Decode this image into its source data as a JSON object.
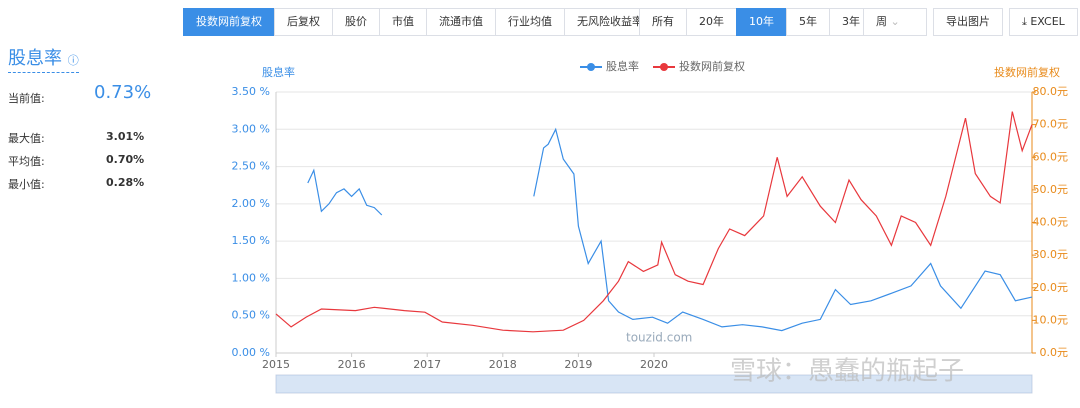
{
  "toolbar": {
    "price_modes": [
      "投数网前复权",
      "后复权",
      "股价",
      "市值",
      "流通市值",
      "行业均值",
      "无风险收益率"
    ],
    "active_mode": 0,
    "ranges": [
      "所有",
      "20年",
      "10年",
      "5年",
      "3年"
    ],
    "active_range": 2,
    "period": "周",
    "export_image": "导出图片",
    "export_excel": "EXCEL"
  },
  "sidebar": {
    "title": "股息率",
    "stats": [
      {
        "label": "当前值:",
        "value": "0.73%"
      },
      {
        "label": "最大值:",
        "value": "3.01%"
      },
      {
        "label": "平均值:",
        "value": "0.70%"
      },
      {
        "label": "最小值:",
        "value": "0.28%"
      }
    ]
  },
  "watermarks": [
    "touzid.com",
    "雪球：愚蠢的瓶起子"
  ],
  "chart_data": {
    "type": "line",
    "y_label": "股息率",
    "y2_label": "投数网前复权",
    "xlim": [
      2015,
      2025
    ],
    "xticks": [
      2015,
      2016,
      2017,
      2018,
      2019,
      2020
    ],
    "ylim": [
      0,
      3.5
    ],
    "yticks": [
      {
        "value": 0,
        "label": "0.00 %"
      },
      {
        "value": 0.5,
        "label": "0.50 %"
      },
      {
        "value": 1,
        "label": "1.00 %"
      },
      {
        "value": 1.5,
        "label": "1.50 %"
      },
      {
        "value": 2,
        "label": "2.00 %"
      },
      {
        "value": 2.5,
        "label": "2.50 %"
      },
      {
        "value": 3,
        "label": "3.00 %"
      },
      {
        "value": 3.5,
        "label": "3.50 %"
      }
    ],
    "y2lim": [
      0,
      80
    ],
    "y2ticks": [
      {
        "value": 0,
        "label": "0.0元"
      },
      {
        "value": 10,
        "label": "10.0元"
      },
      {
        "value": 20,
        "label": "20.0元"
      },
      {
        "value": 30,
        "label": "30.0元"
      },
      {
        "value": 40,
        "label": "40.0元"
      },
      {
        "value": 50,
        "label": "50.0元"
      },
      {
        "value": 60,
        "label": "60.0元"
      },
      {
        "value": 70,
        "label": "70.0元"
      },
      {
        "value": 80,
        "label": "80.0元"
      }
    ],
    "grid": true,
    "series": [
      {
        "name": "股息率",
        "color": "#3a8ee6",
        "axis": "y",
        "x": [
          2015.42,
          2015.5,
          2015.6,
          2015.7,
          2015.8,
          2015.9,
          2016.0,
          2016.1,
          2016.2,
          2016.3,
          2016.4,
          2017.4,
          2018.41,
          2018.54,
          2018.6,
          2018.7,
          2018.8,
          2018.94,
          2019.0,
          2019.13,
          2019.3,
          2019.4,
          2019.53,
          2019.72,
          2019.98,
          2020.18,
          2020.38,
          2020.65,
          2020.9,
          2021.17,
          2021.43,
          2021.69,
          2021.96,
          2022.2,
          2022.4,
          2022.6,
          2022.87,
          2023.14,
          2023.4,
          2023.66,
          2023.79,
          2024.06,
          2024.38,
          2024.58,
          2024.78,
          2025.0
        ],
        "values": [
          2.28,
          2.45,
          1.9,
          2.0,
          2.15,
          2.2,
          2.1,
          2.2,
          1.98,
          1.95,
          1.85,
          null,
          2.1,
          2.75,
          2.8,
          3.0,
          2.6,
          2.4,
          1.7,
          1.2,
          1.5,
          0.7,
          0.55,
          0.45,
          0.48,
          0.4,
          0.55,
          0.45,
          0.35,
          0.38,
          0.35,
          0.3,
          0.4,
          0.45,
          0.85,
          0.65,
          0.7,
          0.8,
          0.9,
          1.2,
          0.9,
          0.6,
          1.1,
          1.05,
          0.7,
          0.75
        ]
      },
      {
        "name": "投数网前复权",
        "color": "#e8383d",
        "axis": "y2",
        "x": [
          2015.0,
          2015.2,
          2015.4,
          2015.6,
          2016.05,
          2016.3,
          2016.7,
          2016.97,
          2017.2,
          2017.6,
          2018.0,
          2018.4,
          2018.8,
          2019.07,
          2019.33,
          2019.53,
          2019.66,
          2019.86,
          2020.05,
          2020.1,
          2020.28,
          2020.45,
          2020.65,
          2020.85,
          2021.0,
          2021.2,
          2021.45,
          2021.63,
          2021.76,
          2021.96,
          2022.2,
          2022.4,
          2022.58,
          2022.74,
          2022.94,
          2023.14,
          2023.27,
          2023.46,
          2023.66,
          2023.86,
          2024.12,
          2024.25,
          2024.45,
          2024.58,
          2024.74,
          2024.87,
          2025.0
        ],
        "values": [
          12,
          8,
          11,
          13.5,
          13,
          14,
          13,
          12.5,
          9.5,
          8.5,
          7,
          6.5,
          7,
          10,
          16,
          22,
          28,
          25,
          27,
          34,
          24,
          22,
          21,
          32,
          38,
          36,
          42,
          60,
          48,
          54,
          45,
          40,
          53,
          47,
          42,
          33,
          42,
          40,
          33,
          48,
          72,
          55,
          48,
          46,
          74,
          62,
          70
        ]
      }
    ]
  }
}
